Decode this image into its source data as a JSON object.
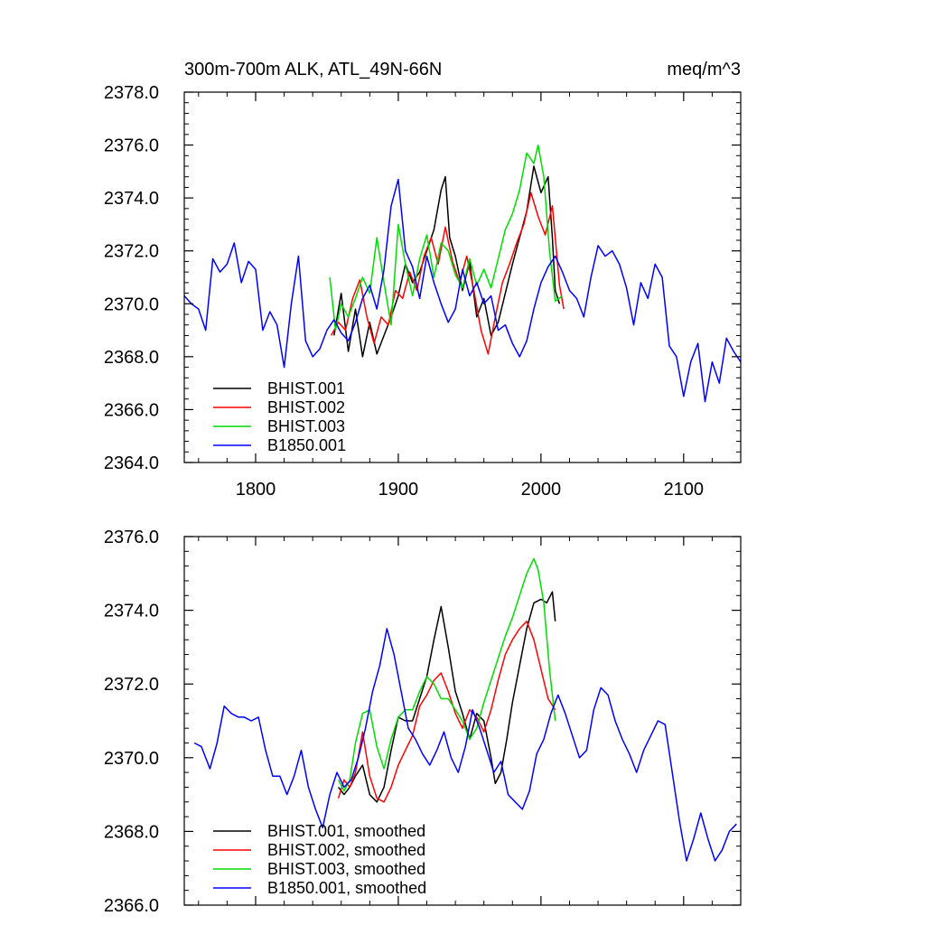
{
  "chart_data": [
    {
      "type": "line",
      "title_left": "300m-700m ALK, ATL_49N-66N",
      "title_right": "meq/m^3",
      "xlim": [
        1750,
        2140
      ],
      "ylim": [
        2364.0,
        2378.0
      ],
      "xticks": [
        1800,
        1900,
        2000,
        2100
      ],
      "yticks": [
        "2364.0",
        "2366.0",
        "2368.0",
        "2370.0",
        "2372.0",
        "2374.0",
        "2376.0",
        "2378.0"
      ],
      "legend": [
        "BHIST.001",
        "BHIST.002",
        "BHIST.003",
        "B1850.001"
      ],
      "series": [
        {
          "name": "BHIST.001",
          "color": "#000000",
          "x": [
            1855,
            1860,
            1865,
            1870,
            1875,
            1880,
            1885,
            1890,
            1895,
            1900,
            1905,
            1910,
            1915,
            1920,
            1925,
            1930,
            1933,
            1936,
            1940,
            1945,
            1950,
            1955,
            1960,
            1965,
            1970,
            1975,
            1980,
            1985,
            1990,
            1995,
            2000,
            2005,
            2008,
            2010,
            2013
          ],
          "y": [
            2368.8,
            2370.4,
            2368.2,
            2369.8,
            2368.0,
            2369.3,
            2368.1,
            2368.8,
            2369.5,
            2370.3,
            2371.5,
            2370.8,
            2371.2,
            2372.0,
            2372.8,
            2374.3,
            2374.8,
            2372.5,
            2371.8,
            2370.5,
            2371.6,
            2369.5,
            2370.2,
            2368.8,
            2369.3,
            2370.4,
            2371.5,
            2372.5,
            2373.5,
            2375.2,
            2374.2,
            2374.8,
            2372.5,
            2370.5,
            2370.0
          ]
        },
        {
          "name": "BHIST.002",
          "color": "#ff0000",
          "x": [
            1853,
            1858,
            1863,
            1868,
            1873,
            1878,
            1883,
            1888,
            1893,
            1898,
            1903,
            1908,
            1913,
            1918,
            1923,
            1928,
            1933,
            1938,
            1943,
            1948,
            1953,
            1958,
            1963,
            1968,
            1973,
            1978,
            1983,
            1988,
            1993,
            1998,
            2003,
            2008,
            2013,
            2016
          ],
          "y": [
            2368.8,
            2369.3,
            2369.0,
            2370.2,
            2370.9,
            2369.5,
            2368.5,
            2369.5,
            2369.2,
            2370.5,
            2370.2,
            2371.2,
            2370.5,
            2371.8,
            2372.5,
            2371.5,
            2372.9,
            2371.6,
            2370.8,
            2371.8,
            2370.5,
            2369.0,
            2368.1,
            2369.5,
            2370.8,
            2371.5,
            2372.3,
            2373.0,
            2374.2,
            2373.3,
            2372.6,
            2373.7,
            2370.7,
            2369.8
          ]
        },
        {
          "name": "BHIST.003",
          "color": "#00dd00",
          "x": [
            1852,
            1856,
            1860,
            1865,
            1870,
            1875,
            1880,
            1885,
            1890,
            1895,
            1900,
            1905,
            1910,
            1915,
            1920,
            1925,
            1930,
            1935,
            1940,
            1945,
            1950,
            1955,
            1960,
            1965,
            1970,
            1975,
            1980,
            1985,
            1990,
            1995,
            1998,
            2002,
            2006,
            2010,
            2015
          ],
          "y": [
            2371.0,
            2369.0,
            2370.0,
            2369.5,
            2370.2,
            2371.0,
            2370.4,
            2372.5,
            2370.8,
            2369.2,
            2373.0,
            2371.5,
            2370.3,
            2371.7,
            2372.6,
            2371.0,
            2372.3,
            2372.0,
            2371.1,
            2370.6,
            2371.7,
            2370.7,
            2371.3,
            2370.6,
            2371.7,
            2372.8,
            2373.4,
            2374.3,
            2375.7,
            2375.3,
            2376.0,
            2374.8,
            2372.0,
            2370.1,
            2370.3
          ]
        },
        {
          "name": "B1850.001",
          "color": "#0000ff",
          "x": [
            1750,
            1755,
            1760,
            1765,
            1770,
            1775,
            1780,
            1785,
            1790,
            1795,
            1800,
            1805,
            1810,
            1815,
            1820,
            1825,
            1830,
            1835,
            1840,
            1845,
            1850,
            1855,
            1860,
            1865,
            1870,
            1875,
            1880,
            1885,
            1890,
            1895,
            1900,
            1905,
            1910,
            1915,
            1920,
            1925,
            1930,
            1935,
            1940,
            1945,
            1950,
            1955,
            1960,
            1965,
            1970,
            1975,
            1980,
            1985,
            1990,
            1995,
            2000,
            2005,
            2010,
            2015,
            2020,
            2025,
            2030,
            2035,
            2040,
            2045,
            2050,
            2055,
            2060,
            2065,
            2070,
            2075,
            2080,
            2085,
            2090,
            2095,
            2100,
            2105,
            2110,
            2115,
            2120,
            2125,
            2130,
            2135,
            2140
          ],
          "y": [
            2370.3,
            2370.0,
            2369.8,
            2369.0,
            2371.7,
            2371.2,
            2371.5,
            2372.3,
            2370.8,
            2371.6,
            2371.3,
            2369.0,
            2369.7,
            2369.2,
            2367.6,
            2370.0,
            2371.8,
            2368.6,
            2368.0,
            2368.3,
            2369.0,
            2369.4,
            2368.9,
            2368.6,
            2369.3,
            2370.2,
            2370.7,
            2369.8,
            2371.3,
            2373.7,
            2374.7,
            2372.0,
            2371.4,
            2370.2,
            2371.8,
            2370.8,
            2370.0,
            2369.3,
            2369.8,
            2371.3,
            2370.3,
            2370.8,
            2370.0,
            2370.3,
            2369.0,
            2369.2,
            2368.5,
            2368.0,
            2368.6,
            2369.8,
            2370.8,
            2371.4,
            2371.8,
            2371.2,
            2370.5,
            2370.2,
            2369.5,
            2371.0,
            2372.2,
            2371.8,
            2372.0,
            2371.5,
            2370.6,
            2369.2,
            2370.8,
            2370.2,
            2371.5,
            2371.0,
            2368.4,
            2368.0,
            2366.5,
            2367.8,
            2368.5,
            2366.3,
            2367.8,
            2367.0,
            2368.7,
            2368.2,
            2367.8
          ]
        }
      ]
    },
    {
      "type": "line",
      "xlim": [
        1750,
        2140
      ],
      "ylim": [
        2366.0,
        2376.0
      ],
      "xticks": [
        1800,
        1900,
        2000,
        2100
      ],
      "yticks": [
        "2366.0",
        "2368.0",
        "2370.0",
        "2372.0",
        "2374.0",
        "2376.0"
      ],
      "legend": [
        "BHIST.001, smoothed",
        "BHIST.002, smoothed",
        "BHIST.003, smoothed",
        "B1850.001, smoothed"
      ],
      "series": [
        {
          "name": "BHIST.001, smoothed",
          "color": "#000000",
          "x": [
            1858,
            1862,
            1866,
            1870,
            1875,
            1880,
            1885,
            1890,
            1895,
            1900,
            1905,
            1910,
            1915,
            1920,
            1925,
            1930,
            1935,
            1940,
            1945,
            1950,
            1955,
            1960,
            1965,
            1968,
            1972,
            1976,
            1980,
            1985,
            1990,
            1995,
            2000,
            2004,
            2008,
            2010
          ],
          "y": [
            2369.2,
            2369.0,
            2369.2,
            2369.5,
            2369.8,
            2369.0,
            2368.8,
            2369.2,
            2370.2,
            2371.1,
            2371.0,
            2371.0,
            2371.6,
            2372.2,
            2373.2,
            2374.1,
            2373.0,
            2371.8,
            2371.2,
            2370.5,
            2371.2,
            2371.0,
            2370.0,
            2369.3,
            2369.6,
            2370.5,
            2371.5,
            2372.5,
            2373.5,
            2374.2,
            2374.3,
            2374.2,
            2374.5,
            2373.7
          ]
        },
        {
          "name": "BHIST.002, smoothed",
          "color": "#ff0000",
          "x": [
            1858,
            1862,
            1866,
            1870,
            1875,
            1880,
            1885,
            1890,
            1895,
            1900,
            1905,
            1910,
            1915,
            1920,
            1925,
            1930,
            1935,
            1940,
            1945,
            1950,
            1955,
            1960,
            1965,
            1970,
            1975,
            1980,
            1985,
            1990,
            1995,
            2000,
            2005,
            2010
          ],
          "y": [
            2368.9,
            2369.4,
            2369.2,
            2369.6,
            2370.7,
            2369.5,
            2368.9,
            2368.8,
            2369.2,
            2369.8,
            2370.2,
            2370.6,
            2371.4,
            2371.7,
            2372.1,
            2372.3,
            2371.8,
            2371.2,
            2370.8,
            2371.3,
            2371.1,
            2370.7,
            2371.3,
            2372.1,
            2372.8,
            2373.2,
            2373.5,
            2373.7,
            2373.2,
            2372.4,
            2371.6,
            2371.3
          ]
        },
        {
          "name": "BHIST.003, smoothed",
          "color": "#00dd00",
          "x": [
            1858,
            1862,
            1866,
            1870,
            1875,
            1880,
            1885,
            1890,
            1895,
            1900,
            1905,
            1910,
            1915,
            1920,
            1925,
            1930,
            1935,
            1940,
            1945,
            1950,
            1955,
            1960,
            1965,
            1970,
            1975,
            1980,
            1985,
            1990,
            1995,
            1998,
            2002,
            2006,
            2010
          ],
          "y": [
            2369.4,
            2369.1,
            2369.4,
            2370.4,
            2371.2,
            2371.3,
            2370.3,
            2369.7,
            2370.5,
            2371.1,
            2371.3,
            2371.3,
            2371.8,
            2372.2,
            2372.0,
            2371.6,
            2371.6,
            2371.3,
            2371.0,
            2370.5,
            2370.8,
            2371.5,
            2372.1,
            2372.7,
            2373.3,
            2373.8,
            2374.4,
            2375.0,
            2375.4,
            2375.1,
            2374.2,
            2372.4,
            2371.0
          ]
        },
        {
          "name": "B1850.001, smoothed",
          "color": "#0000ff",
          "x": [
            1757,
            1762,
            1768,
            1773,
            1778,
            1783,
            1788,
            1792,
            1797,
            1802,
            1807,
            1812,
            1817,
            1822,
            1827,
            1832,
            1837,
            1842,
            1847,
            1852,
            1857,
            1862,
            1867,
            1872,
            1877,
            1882,
            1887,
            1892,
            1897,
            1902,
            1907,
            1912,
            1917,
            1922,
            1927,
            1932,
            1937,
            1942,
            1947,
            1952,
            1957,
            1962,
            1967,
            1972,
            1977,
            1982,
            1987,
            1992,
            1997,
            2002,
            2007,
            2012,
            2017,
            2022,
            2027,
            2032,
            2037,
            2042,
            2047,
            2052,
            2057,
            2062,
            2067,
            2072,
            2077,
            2082,
            2087,
            2092,
            2097,
            2102,
            2107,
            2112,
            2117,
            2122,
            2127,
            2132,
            2137
          ],
          "y": [
            2370.4,
            2370.3,
            2369.7,
            2370.4,
            2371.4,
            2371.2,
            2371.1,
            2371.1,
            2371.0,
            2371.1,
            2370.2,
            2369.5,
            2369.5,
            2369.0,
            2369.5,
            2370.2,
            2369.2,
            2368.6,
            2368.1,
            2369.0,
            2369.6,
            2369.2,
            2369.4,
            2370.0,
            2370.8,
            2371.8,
            2372.5,
            2373.5,
            2372.8,
            2371.8,
            2370.8,
            2370.5,
            2370.1,
            2369.8,
            2370.2,
            2370.7,
            2370.0,
            2369.6,
            2370.3,
            2371.3,
            2370.8,
            2370.2,
            2369.6,
            2369.9,
            2369.0,
            2368.8,
            2368.6,
            2369.1,
            2370.1,
            2370.5,
            2371.2,
            2371.7,
            2371.2,
            2370.6,
            2370.0,
            2370.2,
            2371.3,
            2371.9,
            2371.7,
            2371.0,
            2370.5,
            2370.1,
            2369.6,
            2370.2,
            2370.6,
            2371.0,
            2370.9,
            2369.6,
            2368.3,
            2367.2,
            2367.8,
            2368.5,
            2367.8,
            2367.2,
            2367.5,
            2368.0,
            2368.2
          ]
        }
      ]
    }
  ]
}
